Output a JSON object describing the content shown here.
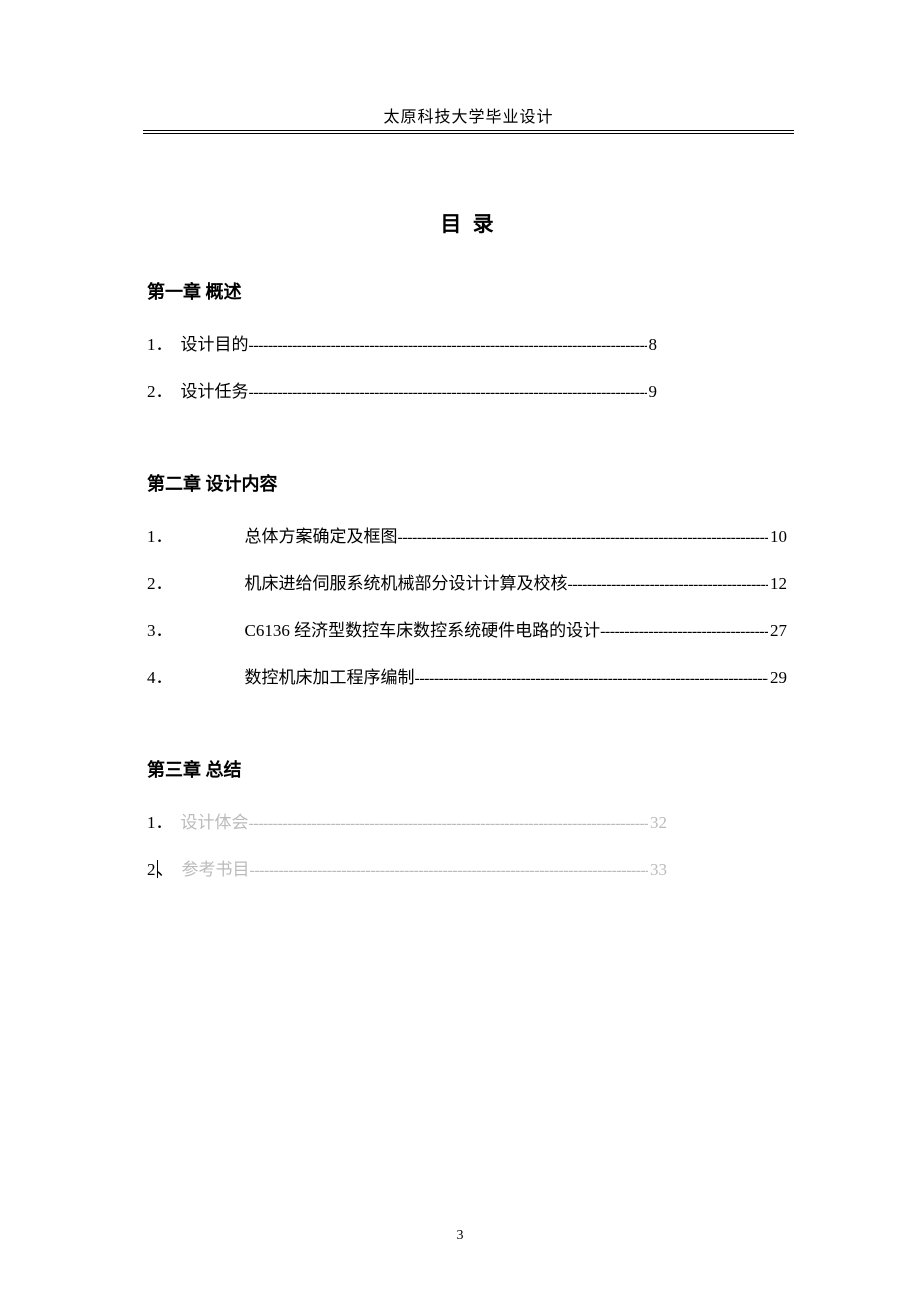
{
  "header": {
    "text": "太原科技大学毕业设计"
  },
  "title": "目 录",
  "chapters": [
    {
      "heading": "第一章 概述",
      "style": "a",
      "items": [
        {
          "num": "1．",
          "text": "设计目的",
          "page": "8",
          "faded": false
        },
        {
          "num": "2．",
          "text": "设计任务",
          "page": "9",
          "faded": false
        }
      ]
    },
    {
      "heading": "第二章 设计内容",
      "style": "b",
      "indented": true,
      "items": [
        {
          "num": "1．",
          "text": "总体方案确定及框图",
          "page": "10",
          "faded": false
        },
        {
          "num": "2．",
          "text": "机床进给伺服系统机械部分设计计算及校核",
          "page": "12",
          "faded": false
        },
        {
          "num": "3．",
          "text": "C6136 经济型数控车床数控系统硬件电路的设计",
          "page": "27",
          "faded": false
        },
        {
          "num": "4．",
          "text": "数控机床加工程序编制",
          "page": "29",
          "faded": false
        }
      ]
    },
    {
      "heading": "第三章 总结",
      "style": "c",
      "items": [
        {
          "num": "1．",
          "text": "设计体会",
          "page": "32",
          "faded": true
        },
        {
          "num": "2、",
          "text": "参考书目",
          "page": "33",
          "faded": true,
          "cursor": true
        }
      ]
    }
  ],
  "page_number": "3",
  "dash_fill": "----------------------------------------------------------------------------------------------------------------------------------------------------------------------------"
}
